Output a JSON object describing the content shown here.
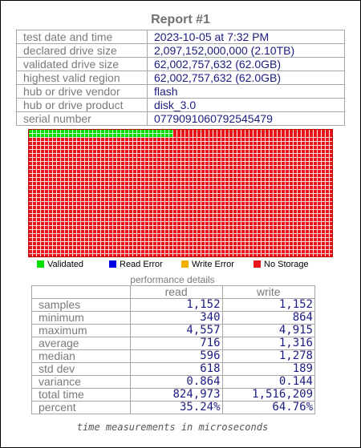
{
  "report": {
    "title": "Report #1",
    "info": [
      {
        "label": "test date and time",
        "value": "2023-10-05  at  7:32 PM"
      },
      {
        "label": "declared drive size",
        "value": "2,097,152,000,000 (2.10TB)"
      },
      {
        "label": "validated drive size",
        "value": "62,002,757,632 (62.0GB)"
      },
      {
        "label": "highest valid region",
        "value": "62,002,757,632 (62.0GB)"
      },
      {
        "label": "hub or drive vendor",
        "value": "flash"
      },
      {
        "label": "hub or drive product",
        "value": "disk_3.0"
      },
      {
        "label": "serial number",
        "value": "0779091060792545479"
      }
    ]
  },
  "storage_map": {
    "validated_fraction": 0.0296,
    "colors": {
      "validated": "#00e000",
      "read_error": "#0000e0",
      "write_error": "#f0b000",
      "no_storage": "#e8141c"
    }
  },
  "legend": [
    {
      "label": "Validated",
      "color": "#00e000"
    },
    {
      "label": "Read Error",
      "color": "#0000e0"
    },
    {
      "label": "Write Error",
      "color": "#f0b000"
    },
    {
      "label": "No Storage",
      "color": "#e8141c"
    }
  ],
  "performance": {
    "title": "performance details",
    "columns": [
      "read",
      "write"
    ],
    "rows": [
      {
        "label": "samples",
        "read": "1,152",
        "write": "1,152"
      },
      {
        "label": "minimum",
        "read": "340",
        "write": "864"
      },
      {
        "label": "maximum",
        "read": "4,557",
        "write": "4,915"
      },
      {
        "label": "average",
        "read": "716",
        "write": "1,316"
      },
      {
        "label": "median",
        "read": "596",
        "write": "1,278"
      },
      {
        "label": "std dev",
        "read": "618",
        "write": "189"
      },
      {
        "label": "variance",
        "read": "0.864",
        "write": "0.144"
      },
      {
        "label": "total time",
        "read": "824,973",
        "write": "1,516,209"
      },
      {
        "label": "percent",
        "read": "35.24%",
        "write": "64.76%"
      }
    ],
    "note": "time measurements in microseconds"
  }
}
